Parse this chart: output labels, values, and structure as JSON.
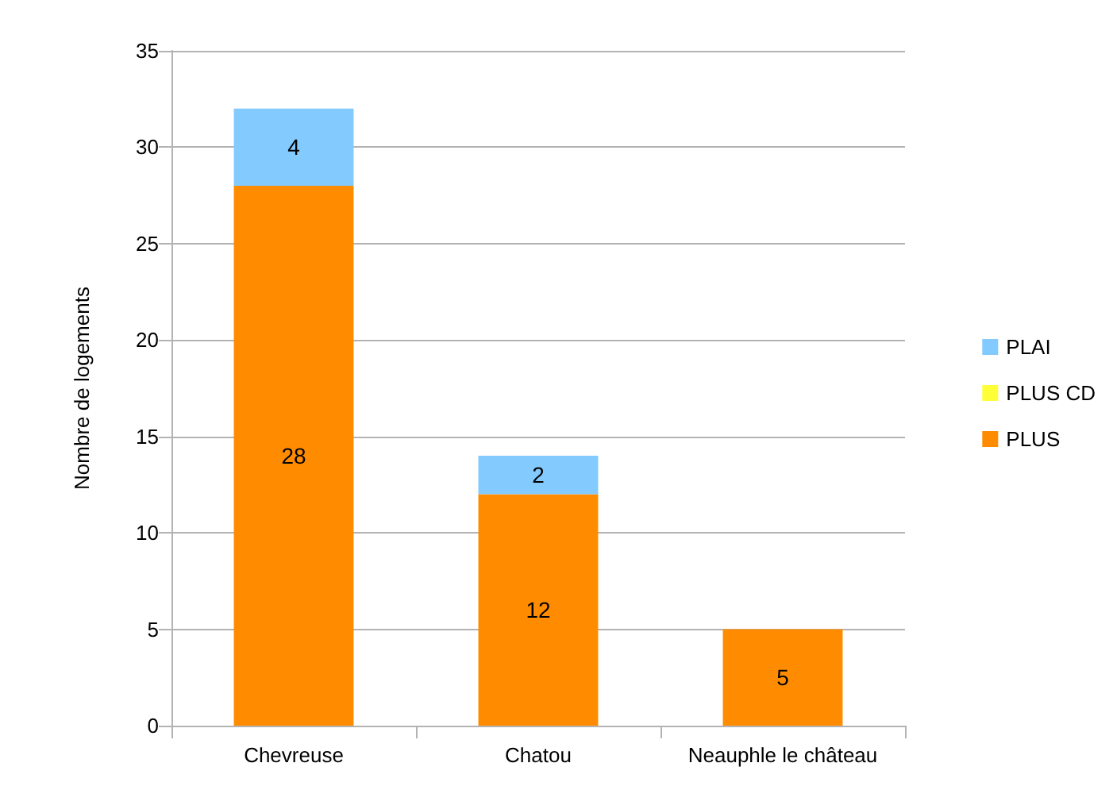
{
  "chart_data": {
    "type": "bar",
    "stacked": true,
    "ylabel": "Nombre de logements",
    "categories": [
      "Chevreuse",
      "Chatou",
      "Neauphle le château"
    ],
    "series": [
      {
        "name": "PLUS",
        "color": "#ff8c00",
        "values": [
          28,
          12,
          5
        ],
        "value_labels": [
          "28",
          "12",
          "5"
        ]
      },
      {
        "name": "PLUS CD",
        "color": "#ffff38",
        "values": [
          0,
          0,
          0
        ],
        "value_labels": [
          null,
          null,
          null
        ]
      },
      {
        "name": "PLAI",
        "color": "#83caff",
        "values": [
          4,
          2,
          0
        ],
        "value_labels": [
          "4",
          "2",
          null
        ]
      }
    ],
    "ylim": [
      0,
      35
    ],
    "yticks": [
      0,
      5,
      10,
      15,
      20,
      25,
      30,
      35
    ],
    "grid": "y",
    "legend": "right"
  }
}
